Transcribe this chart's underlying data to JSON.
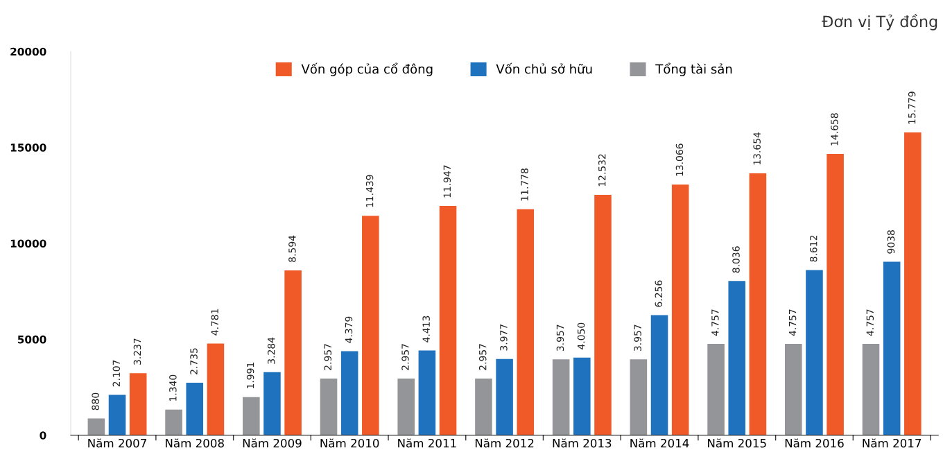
{
  "chart_data": {
    "type": "bar",
    "categories": [
      "Năm 2007",
      "Năm 2008",
      "Năm 2009",
      "Năm 2010",
      "Năm 2011",
      "Năm 2012",
      "Năm 2013",
      "Năm 2014",
      "Năm 2015",
      "Năm 2016",
      "Năm 2017"
    ],
    "series": [
      {
        "name": "Vốn góp của cổ đông",
        "color": "#f05a28",
        "values": [
          3237,
          4781,
          8594,
          11439,
          11947,
          11778,
          12532,
          13066,
          13654,
          14658,
          15779
        ],
        "value_labels": [
          "3.237",
          "4.781",
          "8.594",
          "11.439",
          "11.947",
          "11.778",
          "12.532",
          "13.066",
          "13.654",
          "14.658",
          "15.779"
        ]
      },
      {
        "name": "Vốn chủ sở hữu",
        "color": "#1f73be",
        "values": [
          2107,
          2735,
          3284,
          4379,
          4413,
          3977,
          4050,
          6256,
          8036,
          8612,
          9038
        ],
        "value_labels": [
          "2.107",
          "2.735",
          "3.284",
          "4.379",
          "4.413",
          "3.977",
          "4.050",
          "6.256",
          "8.036",
          "8.612",
          "9038"
        ]
      },
      {
        "name": "Tổng tài sản",
        "color": "#939598",
        "values": [
          880,
          1340,
          1991,
          2957,
          2957,
          2957,
          3957,
          3957,
          4757,
          4757,
          4757
        ],
        "value_labels": [
          "880",
          "1.340",
          "1.991",
          "2.957",
          "2.957",
          "2.957",
          "3.957",
          "3.957",
          "4.757",
          "4.757",
          "4.757"
        ]
      }
    ],
    "ylim": [
      0,
      20000
    ],
    "yticks": [
      0,
      5000,
      10000,
      15000,
      20000
    ],
    "annotations": [
      "Đơn vị Tỷ đồng"
    ],
    "legend": "top",
    "grid": false
  }
}
